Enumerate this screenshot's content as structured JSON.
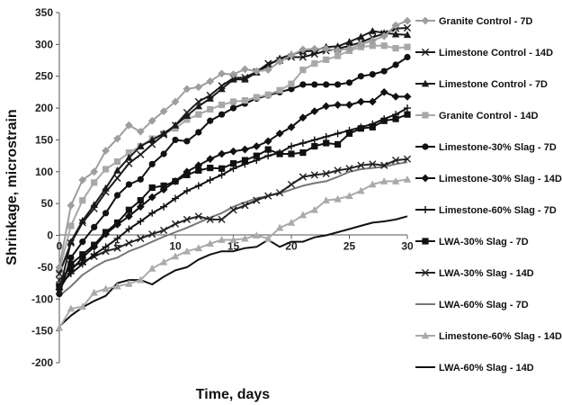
{
  "chart_data": {
    "type": "line",
    "xlabel": "Time, days",
    "ylabel": "Shrinkage, microstrain",
    "xlim": [
      0,
      30
    ],
    "ylim": [
      -200,
      350
    ],
    "xticks": [
      0,
      5,
      10,
      15,
      20,
      25,
      30
    ],
    "yticks": [
      -200,
      -150,
      -100,
      -50,
      0,
      50,
      100,
      150,
      200,
      250,
      300,
      350
    ],
    "grid": false,
    "legend_position": "right",
    "series": [
      {
        "name": "Granite Control - 7D",
        "color": "#9e9e9e",
        "marker": "diamond",
        "x": [
          0,
          1,
          2,
          3,
          4,
          5,
          6,
          7,
          8,
          9,
          10,
          11,
          12,
          13,
          14,
          15,
          16,
          17,
          18,
          19,
          20,
          21,
          22,
          23,
          24,
          25,
          26,
          27,
          28,
          29,
          30
        ],
        "y": [
          -50,
          47,
          87,
          100,
          133,
          152,
          173,
          163,
          180,
          195,
          210,
          230,
          233,
          242,
          254,
          253,
          261,
          258,
          260,
          273,
          283,
          292,
          293,
          293,
          291,
          293,
          300,
          306,
          313,
          330,
          337
        ]
      },
      {
        "name": "Limestone Control - 14D",
        "color": "#1a1a1a",
        "marker": "x",
        "x": [
          0,
          1,
          2,
          3,
          4,
          5,
          6,
          7,
          8,
          9,
          10,
          11,
          12,
          13,
          14,
          15,
          16,
          17,
          18,
          19,
          20,
          21,
          22,
          23,
          24,
          25,
          26,
          27,
          28,
          29,
          30
        ],
        "y": [
          -60,
          -12,
          20,
          42,
          68,
          90,
          113,
          127,
          143,
          158,
          173,
          193,
          210,
          220,
          235,
          247,
          248,
          257,
          270,
          275,
          280,
          280,
          285,
          290,
          293,
          298,
          303,
          311,
          317,
          325,
          326
        ]
      },
      {
        "name": "Limestone Control - 7D",
        "color": "#1a1a1a",
        "marker": "triangle",
        "x": [
          0,
          1,
          2,
          3,
          4,
          5,
          6,
          7,
          8,
          9,
          10,
          11,
          12,
          13,
          14,
          15,
          16,
          17,
          18,
          19,
          20,
          21,
          22,
          23,
          24,
          25,
          26,
          27,
          28,
          29,
          30
        ],
        "y": [
          -88,
          -10,
          23,
          48,
          74,
          102,
          122,
          140,
          150,
          160,
          173,
          188,
          203,
          215,
          230,
          245,
          245,
          256,
          267,
          278,
          284,
          289,
          290,
          296,
          297,
          304,
          312,
          321,
          318,
          316,
          315
        ]
      },
      {
        "name": "Granite Control - 14D",
        "color": "#a8a8a8",
        "marker": "square",
        "x": [
          0,
          1,
          2,
          3,
          4,
          5,
          6,
          7,
          8,
          9,
          10,
          11,
          12,
          13,
          14,
          15,
          16,
          17,
          18,
          19,
          20,
          21,
          22,
          23,
          24,
          25,
          26,
          27,
          28,
          29,
          30
        ],
        "y": [
          -55,
          15,
          55,
          83,
          104,
          116,
          130,
          140,
          152,
          160,
          168,
          182,
          190,
          198,
          205,
          210,
          212,
          217,
          221,
          228,
          238,
          260,
          270,
          276,
          282,
          290,
          296,
          298,
          298,
          294,
          296
        ]
      },
      {
        "name": "Limestone-30% Slag - 7D",
        "color": "#111111",
        "marker": "circle",
        "x": [
          0,
          1,
          2,
          3,
          4,
          5,
          6,
          7,
          8,
          9,
          10,
          11,
          12,
          13,
          14,
          15,
          16,
          17,
          18,
          19,
          20,
          21,
          22,
          23,
          24,
          25,
          26,
          27,
          28,
          29,
          30
        ],
        "y": [
          -92,
          -35,
          -10,
          13,
          35,
          63,
          80,
          88,
          112,
          128,
          150,
          148,
          162,
          180,
          190,
          200,
          207,
          215,
          220,
          225,
          230,
          237,
          237,
          237,
          237,
          240,
          250,
          253,
          258,
          268,
          280
        ]
      },
      {
        "name": "Limestone-30% Slag - 14D",
        "color": "#111111",
        "marker": "diamond",
        "x": [
          0,
          1,
          2,
          3,
          4,
          5,
          6,
          7,
          8,
          9,
          10,
          11,
          12,
          13,
          14,
          15,
          16,
          17,
          18,
          19,
          20,
          21,
          22,
          23,
          24,
          25,
          26,
          27,
          28,
          29,
          30
        ],
        "y": [
          -85,
          -55,
          -35,
          -18,
          2,
          17,
          30,
          45,
          60,
          72,
          85,
          100,
          110,
          120,
          128,
          132,
          135,
          140,
          148,
          160,
          170,
          185,
          195,
          203,
          205,
          205,
          210,
          210,
          225,
          218,
          218
        ]
      },
      {
        "name": "Limestone-60% Slag - 7D",
        "color": "#111111",
        "marker": "plus",
        "x": [
          0,
          1,
          2,
          3,
          4,
          5,
          6,
          7,
          8,
          9,
          10,
          11,
          12,
          13,
          14,
          15,
          16,
          17,
          18,
          19,
          20,
          21,
          22,
          23,
          24,
          25,
          26,
          27,
          28,
          29,
          30
        ],
        "y": [
          -78,
          -60,
          -45,
          -30,
          -18,
          -5,
          10,
          22,
          35,
          45,
          58,
          70,
          78,
          87,
          95,
          105,
          112,
          118,
          125,
          130,
          140,
          145,
          150,
          155,
          160,
          165,
          170,
          175,
          183,
          190,
          200
        ]
      },
      {
        "name": "LWA-30% Slag - 7D",
        "color": "#111111",
        "marker": "square",
        "x": [
          0,
          1,
          2,
          3,
          4,
          5,
          6,
          7,
          8,
          9,
          10,
          11,
          12,
          13,
          14,
          15,
          16,
          17,
          18,
          19,
          20,
          21,
          22,
          23,
          24,
          25,
          26,
          27,
          28,
          29,
          30
        ],
        "y": [
          -80,
          -45,
          -30,
          -15,
          5,
          20,
          40,
          55,
          75,
          78,
          85,
          95,
          102,
          106,
          105,
          113,
          118,
          125,
          135,
          128,
          128,
          130,
          140,
          145,
          143,
          160,
          168,
          170,
          180,
          183,
          190
        ]
      },
      {
        "name": "LWA-30% Slag - 14D",
        "color": "#222222",
        "marker": "x",
        "x": [
          0,
          1,
          2,
          3,
          4,
          5,
          6,
          7,
          8,
          9,
          10,
          11,
          12,
          13,
          14,
          15,
          16,
          17,
          18,
          19,
          20,
          21,
          22,
          23,
          24,
          25,
          26,
          27,
          28,
          29,
          30
        ],
        "y": [
          -70,
          -50,
          -42,
          -33,
          -25,
          -20,
          -12,
          -5,
          2,
          8,
          18,
          25,
          30,
          25,
          25,
          40,
          47,
          55,
          62,
          67,
          80,
          92,
          95,
          97,
          102,
          105,
          110,
          112,
          110,
          118,
          120
        ]
      },
      {
        "name": "LWA-60% Slag - 7D",
        "color": "#777777",
        "marker": "none",
        "x": [
          0,
          1,
          2,
          3,
          4,
          5,
          6,
          7,
          8,
          9,
          10,
          11,
          12,
          13,
          14,
          15,
          16,
          17,
          18,
          19,
          20,
          21,
          22,
          23,
          24,
          25,
          26,
          27,
          28,
          29,
          30
        ],
        "y": [
          -95,
          -80,
          -62,
          -50,
          -40,
          -35,
          -25,
          -18,
          -10,
          -2,
          5,
          12,
          20,
          28,
          35,
          45,
          52,
          58,
          62,
          66,
          72,
          78,
          82,
          85,
          92,
          100,
          104,
          106,
          108,
          112,
          115
        ]
      },
      {
        "name": "Limestone-60% Slag - 14D",
        "color": "#aaaaaa",
        "marker": "triangle",
        "x": [
          0,
          1,
          2,
          3,
          4,
          5,
          6,
          7,
          8,
          9,
          10,
          11,
          12,
          13,
          14,
          15,
          16,
          17,
          18,
          19,
          20,
          21,
          22,
          23,
          24,
          25,
          26,
          27,
          28,
          29,
          30
        ],
        "y": [
          -145,
          -115,
          -112,
          -90,
          -84,
          -80,
          -76,
          -70,
          -52,
          -42,
          -33,
          -25,
          -20,
          -13,
          -7,
          -7,
          -5,
          0,
          -5,
          12,
          20,
          32,
          40,
          55,
          57,
          62,
          70,
          80,
          85,
          85,
          88
        ]
      },
      {
        "name": "LWA-60% Slag - 14D",
        "color": "#111111",
        "marker": "none",
        "x": [
          0,
          1,
          2,
          3,
          4,
          5,
          6,
          7,
          8,
          9,
          10,
          11,
          12,
          13,
          14,
          15,
          16,
          17,
          18,
          19,
          20,
          21,
          22,
          23,
          24,
          25,
          26,
          27,
          28,
          29,
          30
        ],
        "y": [
          -143,
          -126,
          -113,
          -103,
          -95,
          -75,
          -70,
          -70,
          -77,
          -65,
          -55,
          -50,
          -38,
          -30,
          -25,
          -25,
          -20,
          -18,
          -7,
          -18,
          -10,
          -10,
          -3,
          0,
          5,
          10,
          15,
          20,
          22,
          25,
          30
        ]
      }
    ]
  }
}
